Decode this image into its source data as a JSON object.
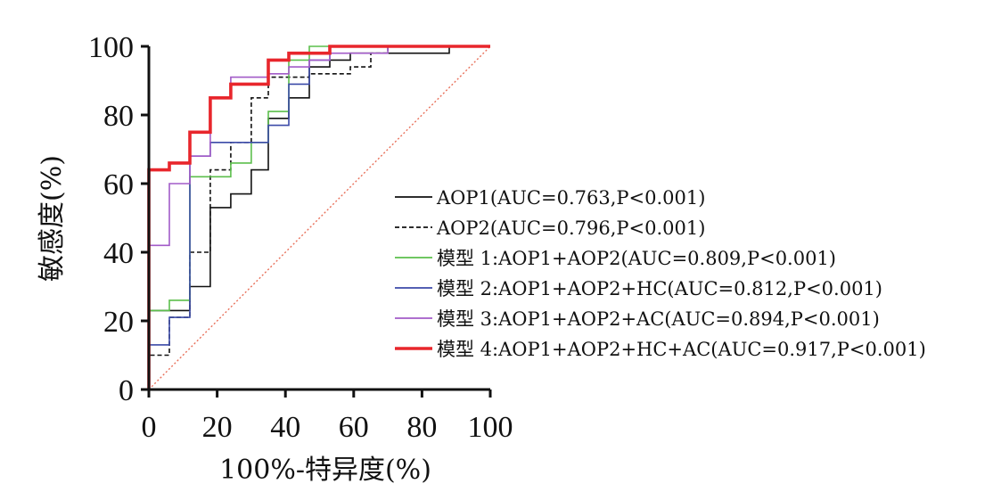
{
  "chart_data": {
    "type": "line",
    "title": "",
    "xlabel": "100%-特异度(%)",
    "ylabel": "敏感度(%)",
    "xlim": [
      0,
      100
    ],
    "ylim": [
      0,
      100
    ],
    "xticks": [
      0,
      20,
      40,
      60,
      80,
      100
    ],
    "yticks": [
      0,
      20,
      40,
      60,
      80,
      100
    ],
    "grid": false,
    "legend_position": "right",
    "reference_line": {
      "x": [
        0,
        100
      ],
      "y": [
        0,
        100
      ],
      "color": "#e8705a",
      "style": "dotted"
    },
    "series": [
      {
        "name": "AOP1(AUC=0.763,P<0.001)",
        "color": "#111111",
        "style": "solid",
        "x": [
          0,
          0,
          12,
          12,
          18,
          18,
          24,
          24,
          30,
          30,
          35,
          35,
          41,
          41,
          47,
          47,
          53,
          53,
          59,
          59,
          65,
          65,
          88,
          88,
          100
        ],
        "y": [
          0,
          23,
          23,
          30,
          30,
          53,
          53,
          57,
          57,
          64,
          64,
          79,
          79,
          85,
          85,
          94,
          94,
          96,
          96,
          98,
          98,
          98,
          98,
          100,
          100
        ]
      },
      {
        "name": "AOP2(AUC=0.796,P<0.001)",
        "color": "#111111",
        "style": "dashed",
        "x": [
          0,
          0,
          6,
          6,
          12,
          12,
          18,
          18,
          24,
          24,
          30,
          30,
          35,
          35,
          47,
          47,
          59,
          59,
          65,
          65,
          70,
          70,
          100
        ],
        "y": [
          0,
          10,
          10,
          21,
          21,
          40,
          40,
          64,
          64,
          72,
          72,
          85,
          85,
          91,
          91,
          92,
          92,
          94,
          94,
          98,
          98,
          100,
          100
        ]
      },
      {
        "name": "模型 1:AOP1+AOP2(AUC=0.809,P<0.001)",
        "color": "#5cbf4c",
        "style": "solid",
        "x": [
          0,
          0,
          6,
          6,
          12,
          12,
          24,
          24,
          30,
          30,
          35,
          35,
          41,
          41,
          47,
          47,
          100
        ],
        "y": [
          0,
          23,
          23,
          26,
          26,
          62,
          62,
          66,
          66,
          72,
          72,
          81,
          81,
          96,
          96,
          100,
          100
        ]
      },
      {
        "name": "模型 2:AOP1+AOP2+HC(AUC=0.812,P<0.001)",
        "color": "#3b4aa8",
        "style": "solid",
        "x": [
          0,
          0,
          6,
          6,
          12,
          12,
          18,
          18,
          35,
          35,
          41,
          41,
          47,
          47,
          53,
          53,
          100
        ],
        "y": [
          0,
          13,
          13,
          21,
          21,
          68,
          68,
          72,
          72,
          77,
          77,
          89,
          89,
          96,
          96,
          100,
          100
        ]
      },
      {
        "name": "模型 3:AOP1+AOP2+AC(AUC=0.894,P<0.001)",
        "color": "#a25bc8",
        "style": "solid",
        "x": [
          0,
          0,
          6,
          6,
          12,
          12,
          18,
          18,
          24,
          24,
          35,
          35,
          41,
          41,
          47,
          47,
          53,
          53,
          70,
          70,
          100
        ],
        "y": [
          0,
          42,
          42,
          60,
          60,
          68,
          68,
          85,
          85,
          91,
          91,
          92,
          92,
          94,
          94,
          96,
          96,
          98,
          98,
          100,
          100
        ]
      },
      {
        "name": "模型 4:AOP1+AOP2+HC+AC(AUC=0.917,P<0.001)",
        "color": "#e8262c",
        "style": "solid-thick",
        "x": [
          0,
          0,
          6,
          6,
          12,
          12,
          18,
          18,
          24,
          24,
          35,
          35,
          41,
          41,
          47,
          47,
          53,
          53,
          100
        ],
        "y": [
          0,
          64,
          64,
          66,
          66,
          75,
          75,
          85,
          85,
          89,
          89,
          96,
          96,
          98,
          98,
          98,
          98,
          100,
          100
        ]
      }
    ]
  }
}
